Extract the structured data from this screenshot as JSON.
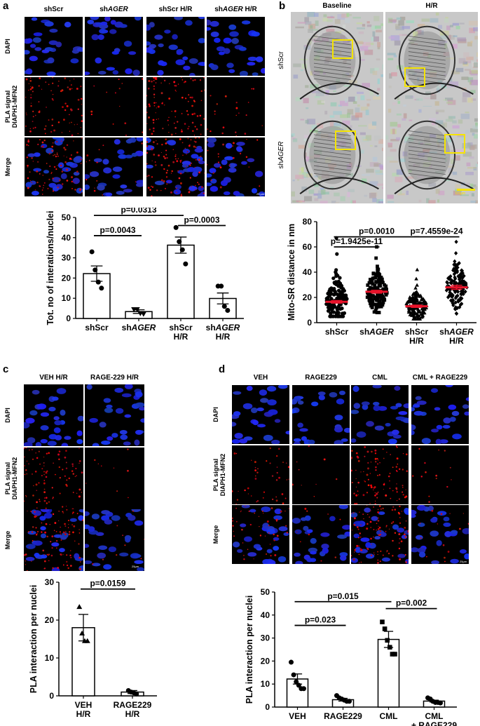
{
  "panel_a": {
    "label": "a",
    "columns": [
      {
        "pre": "shScr",
        "em": "",
        "post": ""
      },
      {
        "pre": "sh",
        "em": "AGER",
        "post": ""
      },
      {
        "pre": "shScr H/R",
        "em": "",
        "post": ""
      },
      {
        "pre": "sh",
        "em": "AGER",
        "post": " H/R"
      }
    ],
    "rows": [
      "DAPI",
      "PLA signal\nDIAPH1-MFN2",
      "Merge"
    ],
    "scalebar": "25 µm"
  },
  "panel_b": {
    "label": "b",
    "columns": [
      "Baseline",
      "H/R"
    ],
    "rows": [
      {
        "pre": "sh",
        "em": "",
        "post": "Scr"
      },
      {
        "pre": "sh",
        "em": "AGER",
        "post": ""
      }
    ],
    "scalebar": "0.5µm"
  },
  "panel_c": {
    "label": "c",
    "columns": [
      "VEH H/R",
      "RAGE-229 H/R"
    ],
    "rows": [
      "DAPI",
      "PLA signal\nDIAPH1-MFN2",
      "Merge"
    ],
    "scalebar": "25µm"
  },
  "panel_d": {
    "label": "d",
    "columns": [
      "VEH",
      "RAGE229",
      "CML",
      "CML + RAGE229"
    ],
    "rows": [
      "DAPI",
      "PLA signal\nDIAPH1-MFN2",
      "Merge"
    ],
    "scalebar": "25µm"
  },
  "chart_data": [
    {
      "id": "a",
      "type": "bar",
      "categories": [
        "shScr",
        "shAGER",
        "shScr\nH/R",
        "shAGER\nH/R"
      ],
      "values": [
        22.2,
        3.4,
        36.3,
        9.9
      ],
      "errors": [
        3.8,
        0.9,
        4.0,
        2.7
      ],
      "points": [
        [
          33,
          24,
          18,
          15
        ],
        [
          4.5,
          4.5,
          2.5,
          2.2
        ],
        [
          45,
          38,
          34,
          27
        ],
        [
          16,
          16,
          6,
          4
        ]
      ],
      "ylabel": "Tot. no of interations/nuclei",
      "ylim": [
        0,
        50
      ],
      "yticks": [
        0,
        10,
        20,
        30,
        40,
        50
      ],
      "comparisons": [
        {
          "from": 0,
          "to": 1,
          "label": "p=0.0043"
        },
        {
          "from": 0,
          "to": 2,
          "label": "p=0.0313"
        },
        {
          "from": 2,
          "to": 3,
          "label": "p=0.0003"
        }
      ]
    },
    {
      "id": "b",
      "type": "scatter",
      "categories": [
        "shScr",
        "shAGER",
        "shScr\nH/R",
        "shAGER\nH/R"
      ],
      "means": [
        16.5,
        24.5,
        13.0,
        28.0
      ],
      "sem": [
        1.0,
        1.1,
        0.9,
        1.6
      ],
      "ranges": [
        [
          5,
          67
        ],
        [
          8,
          60
        ],
        [
          3,
          42
        ],
        [
          5,
          64
        ]
      ],
      "ylabel": "Mito-SR distance in nm",
      "ylim": [
        0,
        80
      ],
      "yticks": [
        0,
        20,
        40,
        60,
        80
      ],
      "comparisons": [
        {
          "from": 0,
          "to": 1,
          "label": "p=1.9425e-11"
        },
        {
          "from": 0,
          "to": 2,
          "label": "p=0.0010"
        },
        {
          "from": 2,
          "to": 3,
          "label": "p=7.4559e-24"
        }
      ]
    },
    {
      "id": "c",
      "type": "bar",
      "categories": [
        "VEH\nH/R",
        "RAGE229\nH/R"
      ],
      "values": [
        18.0,
        1.0
      ],
      "errors": [
        3.5,
        0.4
      ],
      "points": [
        [
          23.5,
          16.5,
          14.5,
          14.5
        ],
        [
          1.4,
          1.0,
          0.8,
          0.5
        ]
      ],
      "ylabel": "PLA interaction per nuclei",
      "ylim": [
        0,
        30
      ],
      "yticks": [
        0,
        10,
        20,
        30
      ],
      "comparisons": [
        {
          "from": 0,
          "to": 1,
          "label": "p=0.0159"
        }
      ]
    },
    {
      "id": "d",
      "type": "bar",
      "categories": [
        "VEH",
        "RAGE229",
        "CML",
        "CML\n+ RAGE229"
      ],
      "values": [
        12.2,
        3.2,
        29.4,
        2.6
      ],
      "errors": [
        2.2,
        0.6,
        3.5,
        0.4
      ],
      "points": [
        [
          19.5,
          14,
          11,
          9.5,
          8,
          8
        ],
        [
          5,
          4,
          3.5,
          3,
          2.5,
          2.5
        ],
        [
          37,
          34,
          29,
          26,
          23,
          23
        ],
        [
          4,
          3.5,
          2.5,
          2,
          2,
          1.8
        ]
      ],
      "ylabel": "PLA interaction per nuclei",
      "ylim": [
        0,
        50
      ],
      "yticks": [
        0,
        10,
        20,
        30,
        40,
        50
      ],
      "comparisons": [
        {
          "from": 0,
          "to": 1,
          "label": "p=0.023"
        },
        {
          "from": 0,
          "to": 2,
          "label": "p=0.015"
        },
        {
          "from": 2,
          "to": 3,
          "label": "p=0.002"
        }
      ]
    }
  ]
}
